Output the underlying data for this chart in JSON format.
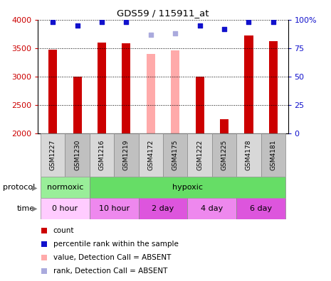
{
  "title": "GDS59 / 115911_at",
  "samples": [
    "GSM1227",
    "GSM1230",
    "GSM1216",
    "GSM1219",
    "GSM4172",
    "GSM4175",
    "GSM1222",
    "GSM1225",
    "GSM4178",
    "GSM4181"
  ],
  "bar_values": [
    3470,
    3000,
    3600,
    3580,
    3400,
    3460,
    3000,
    2250,
    3720,
    3620
  ],
  "bar_colors": [
    "#cc0000",
    "#cc0000",
    "#cc0000",
    "#cc0000",
    "#ffaaaa",
    "#ffaaaa",
    "#cc0000",
    "#cc0000",
    "#cc0000",
    "#cc0000"
  ],
  "rank_values": [
    98,
    95,
    98,
    98,
    87,
    88,
    95,
    92,
    98,
    98
  ],
  "rank_colors": [
    "#1111cc",
    "#1111cc",
    "#1111cc",
    "#1111cc",
    "#aaaadd",
    "#aaaadd",
    "#1111cc",
    "#1111cc",
    "#1111cc",
    "#1111cc"
  ],
  "ylim": [
    2000,
    4000
  ],
  "y2lim": [
    0,
    100
  ],
  "yticks": [
    2000,
    2500,
    3000,
    3500,
    4000
  ],
  "y2ticks": [
    0,
    25,
    50,
    75,
    100
  ],
  "y2labels": [
    "0",
    "25",
    "50",
    "75",
    "100%"
  ],
  "prot_data": [
    {
      "label": "normoxic",
      "start": 0,
      "end": 2,
      "color": "#99ee99"
    },
    {
      "label": "hypoxic",
      "start": 2,
      "end": 10,
      "color": "#66dd66"
    }
  ],
  "time_data": [
    {
      "label": "0 hour",
      "start": 0,
      "end": 2,
      "color": "#ffccff"
    },
    {
      "label": "10 hour",
      "start": 2,
      "end": 4,
      "color": "#ee88ee"
    },
    {
      "label": "2 day",
      "start": 4,
      "end": 6,
      "color": "#dd55dd"
    },
    {
      "label": "4 day",
      "start": 6,
      "end": 8,
      "color": "#ee88ee"
    },
    {
      "label": "6 day",
      "start": 8,
      "end": 10,
      "color": "#dd55dd"
    }
  ],
  "legend_items": [
    {
      "label": "count",
      "color": "#cc0000"
    },
    {
      "label": "percentile rank within the sample",
      "color": "#1111cc"
    },
    {
      "label": "value, Detection Call = ABSENT",
      "color": "#ffaaaa"
    },
    {
      "label": "rank, Detection Call = ABSENT",
      "color": "#aaaadd"
    }
  ],
  "bar_width": 0.35
}
